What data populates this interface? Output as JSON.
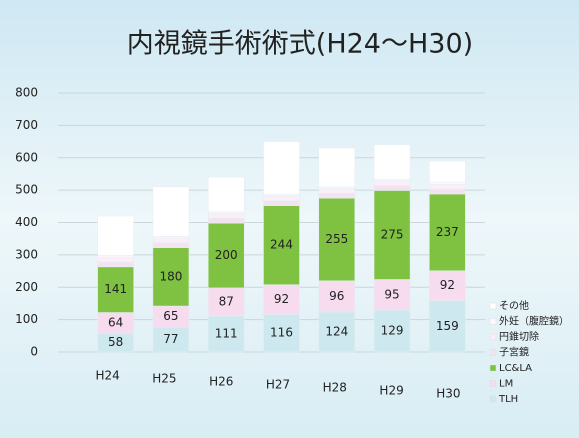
{
  "chart_data": {
    "type": "bar",
    "stacked": true,
    "title": "内視鏡手術術式(H24〜H30)",
    "categories": [
      "H24",
      "H25",
      "H26",
      "H27",
      "H28",
      "H29",
      "H30"
    ],
    "series": [
      {
        "name": "TLH",
        "color": "#cde9ef",
        "labels": true,
        "values": [
          58,
          77,
          111,
          116,
          124,
          129,
          159
        ]
      },
      {
        "name": "LM",
        "color": "#f7dcef",
        "labels": true,
        "values": [
          64,
          65,
          87,
          92,
          96,
          95,
          92
        ]
      },
      {
        "name": "LC&LA",
        "color": "#7fc241",
        "labels": true,
        "values": [
          141,
          180,
          200,
          244,
          255,
          275,
          237
        ]
      },
      {
        "name": "子宮鏡",
        "color": "#f3e3f0",
        "labels": false,
        "values": [
          15,
          15,
          15,
          15,
          15,
          15,
          15
        ]
      },
      {
        "name": "円錐切除",
        "color": "#faeef8",
        "labels": false,
        "values": [
          15,
          15,
          15,
          15,
          15,
          15,
          15
        ]
      },
      {
        "name": "外妊（腹腔鏡）",
        "color": "#fdf8fc",
        "labels": false,
        "values": [
          5,
          5,
          5,
          5,
          5,
          5,
          5
        ]
      },
      {
        "name": "その他",
        "color": "#ffffff",
        "labels": false,
        "values": [
          122,
          153,
          107,
          163,
          120,
          106,
          67
        ]
      }
    ],
    "ylim": [
      0,
      800
    ],
    "yticks": [
      0,
      100,
      200,
      300,
      400,
      500,
      600,
      700,
      800
    ],
    "grid": true,
    "legend": "right"
  }
}
